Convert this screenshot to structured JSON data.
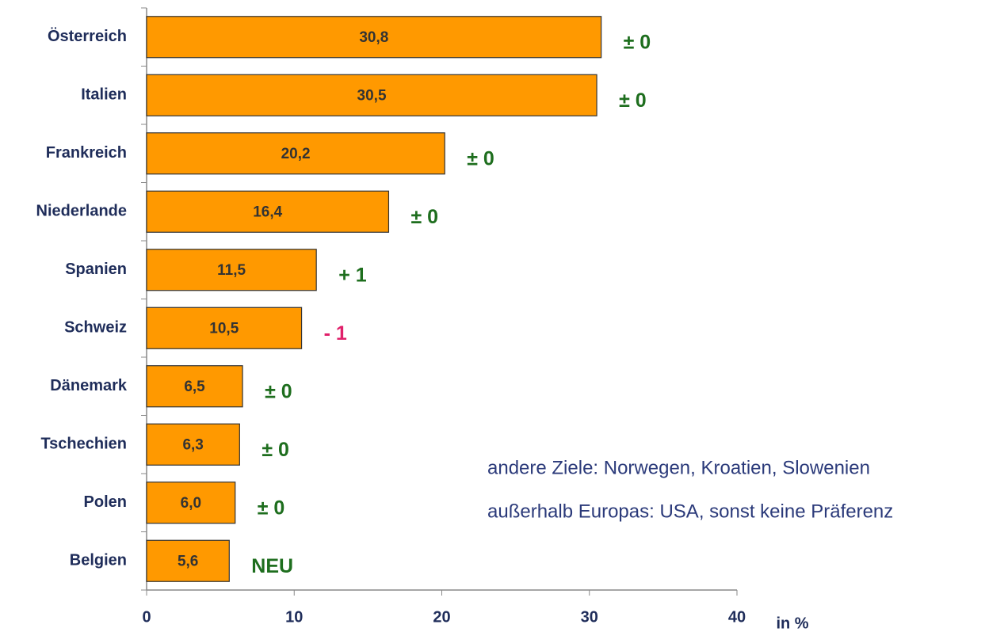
{
  "chart_data": {
    "type": "bar",
    "orientation": "horizontal",
    "categories": [
      "Österreich",
      "Italien",
      "Frankreich",
      "Niederlande",
      "Spanien",
      "Schweiz",
      "Dänemark",
      "Tschechien",
      "Polen",
      "Belgien"
    ],
    "values": [
      30.8,
      30.5,
      20.2,
      16.4,
      11.5,
      10.5,
      6.5,
      6.3,
      6.0,
      5.6
    ],
    "value_labels": [
      "30,8",
      "30,5",
      "20,2",
      "16,4",
      "11,5",
      "10,5",
      "6,5",
      "6,3",
      "6,0",
      "5,6"
    ],
    "annotations": [
      "± 0",
      "± 0",
      "± 0",
      "± 0",
      "+ 1",
      "- 1",
      "± 0",
      "± 0",
      "± 0",
      "NEU"
    ],
    "annotation_colors": [
      "#1e6e1e",
      "#1e6e1e",
      "#1e6e1e",
      "#1e6e1e",
      "#1e6e1e",
      "#e0206a",
      "#1e6e1e",
      "#1e6e1e",
      "#1e6e1e",
      "#1e6e1e"
    ],
    "color": "#ff9900",
    "xlim": [
      0,
      40
    ],
    "xticks": [
      0,
      10,
      20,
      30,
      40
    ],
    "xlabel": "in %",
    "notes": [
      "andere Ziele: Norwegen, Kroatien, Slowenien",
      "außerhalb Europas: USA, sonst keine Präferenz"
    ],
    "grid": false
  }
}
